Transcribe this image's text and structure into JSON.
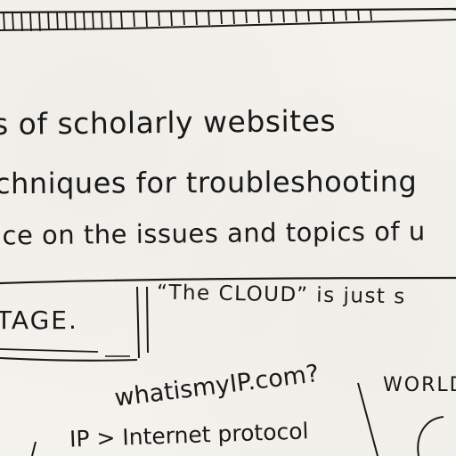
{
  "notes": {
    "line1": "s of scholarly websites",
    "line2": "chniques for troubleshooting",
    "line3": "ice on the issues and topics of u"
  },
  "boxes": {
    "storage_word": "TAGE.",
    "cloud_quote": "“The CLOUD” is just s"
  },
  "lower": {
    "whatismyip": "whatismyIP.com?",
    "ip_definition": "IP > Internet protocol",
    "world_label": "WORLD"
  },
  "colors": {
    "ink": "#1a1a1a",
    "paper": "#f4f2ec"
  }
}
